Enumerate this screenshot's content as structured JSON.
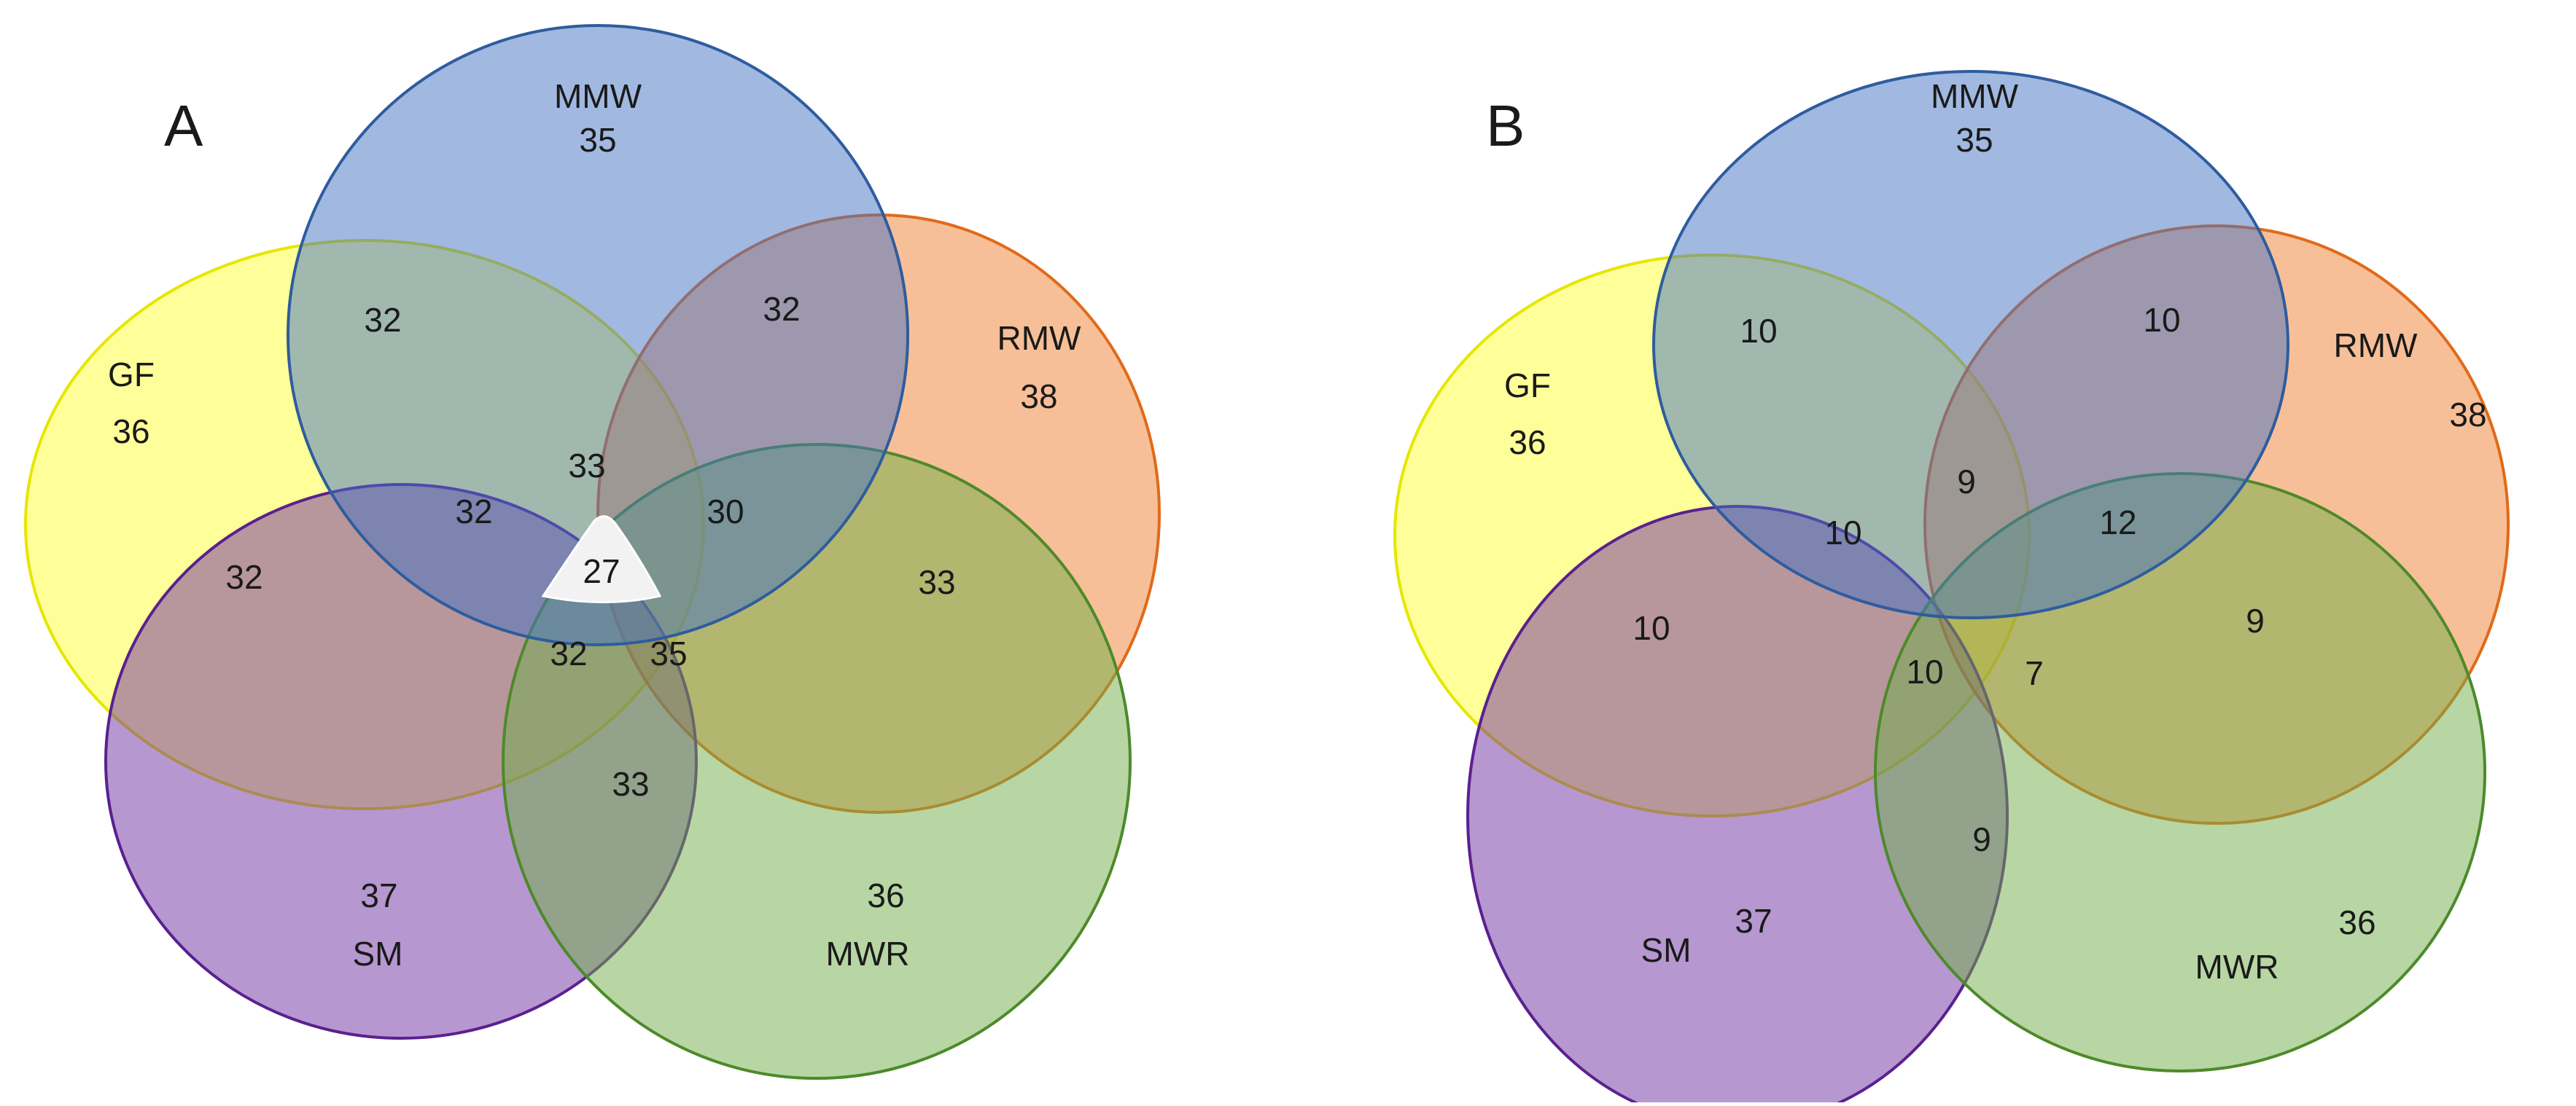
{
  "colors": {
    "GF": {
      "fill": "#ffff33",
      "stroke": "#e6e600"
    },
    "MMW": {
      "fill": "#4472c4",
      "stroke": "#2e5c9e"
    },
    "RMW": {
      "fill": "#f08030",
      "stroke": "#e06a1a"
    },
    "MWR": {
      "fill": "#70ad47",
      "stroke": "#4d8a2a"
    },
    "SM": {
      "fill": "#7030a0",
      "stroke": "#5a2090"
    },
    "center_patch": "#f2f2f2"
  },
  "panels": [
    {
      "letter": "A",
      "sets": [
        {
          "name": "MMW",
          "value": "35"
        },
        {
          "name": "GF",
          "value": "36"
        },
        {
          "name": "RMW",
          "value": "38"
        },
        {
          "name": "SM",
          "value": "37"
        },
        {
          "name": "MWR",
          "value": "36"
        }
      ],
      "intersections": [
        {
          "id": "gf-mmw",
          "value": "32"
        },
        {
          "id": "mmw-rmw",
          "value": "32"
        },
        {
          "id": "gf-sm",
          "value": "32"
        },
        {
          "id": "gf-mmw-sm",
          "value": "32"
        },
        {
          "id": "gf-mmw-rmw",
          "value": "33"
        },
        {
          "id": "mmw-rmw-mwr",
          "value": "30"
        },
        {
          "id": "rmw-mwr",
          "value": "33"
        },
        {
          "id": "all-five",
          "value": "27"
        },
        {
          "id": "gf-sm-mwr",
          "value": "32"
        },
        {
          "id": "rmw-mwr-sm",
          "value": "35"
        },
        {
          "id": "sm-mwr",
          "value": "33"
        }
      ]
    },
    {
      "letter": "B",
      "sets": [
        {
          "name": "MMW",
          "value": "35"
        },
        {
          "name": "GF",
          "value": "36"
        },
        {
          "name": "RMW",
          "value": "38"
        },
        {
          "name": "SM",
          "value": "37"
        },
        {
          "name": "MWR",
          "value": "36"
        }
      ],
      "intersections": [
        {
          "id": "gf-mmw",
          "value": "10"
        },
        {
          "id": "mmw-rmw",
          "value": "10"
        },
        {
          "id": "gf-mmw-rmw",
          "value": "9"
        },
        {
          "id": "gf-mmw-sm",
          "value": "10"
        },
        {
          "id": "mmw-rmw-mwr",
          "value": "12"
        },
        {
          "id": "gf-sm",
          "value": "10"
        },
        {
          "id": "rmw-mwr",
          "value": "9"
        },
        {
          "id": "gf-sm-mwr",
          "value": "10"
        },
        {
          "id": "rmw-mwr-sm",
          "value": "7"
        },
        {
          "id": "sm-mwr",
          "value": "9"
        }
      ]
    }
  ]
}
